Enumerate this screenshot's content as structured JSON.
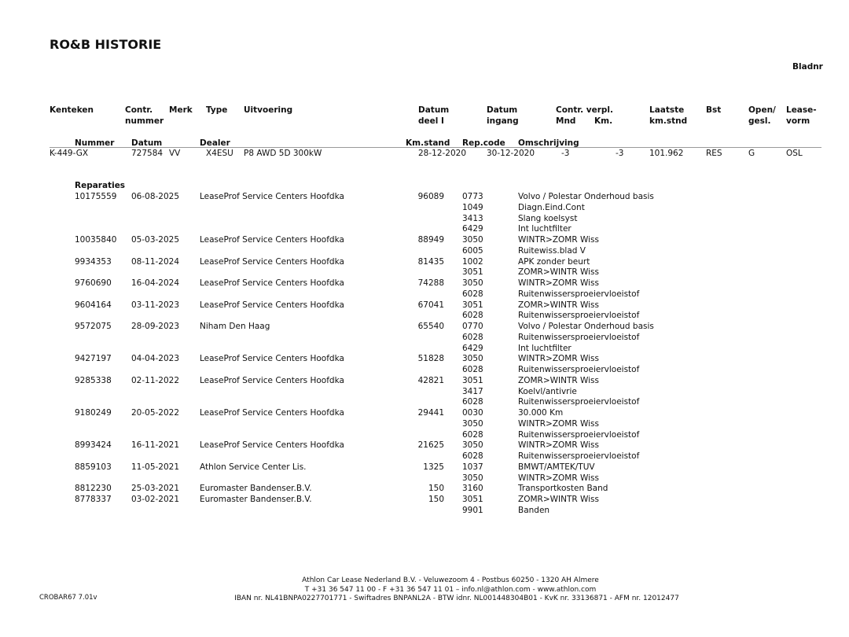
{
  "title": "RO&B HISTORIE",
  "bladnr": "Bladnr",
  "headers": {
    "kenteken": "Kenteken",
    "contr": "Contr.",
    "nummer": "nummer",
    "merk": "Merk",
    "type": "Type",
    "uitvoering": "Uitvoering",
    "datum1": "Datum",
    "deel": "deel I",
    "datum2": "Datum",
    "ingang": "ingang",
    "contrverpl": "Contr. verpl.",
    "mnd": "Mnd",
    "km": "Km.",
    "laatste": "Laatste",
    "kmstnd": "km.stnd",
    "bst": "Bst",
    "open": "Open/",
    "gesl": "gesl.",
    "lease": "Lease-",
    "vorm": "vorm"
  },
  "subheaders": {
    "nummer": "Nummer",
    "datum": "Datum",
    "dealer": "Dealer",
    "kmstand": "Km.stand",
    "repcode": "Rep.code",
    "omschrijving": "Omschrijving"
  },
  "vehicle": {
    "kenteken": "K-449-GX",
    "contractnummer": "727584",
    "merk": "VV",
    "type": "X4ESU",
    "uitvoering": "P8 AWD 5D 300kW",
    "datum_deel": "28-12-2020",
    "datum_ingang": "30-12-2020",
    "mnd": "-3",
    "km": "-3",
    "laatste_kmstnd": "101.962",
    "bst": "RES",
    "open_gesl": "G",
    "leasevorm": "OSL"
  },
  "section_label": "Reparaties",
  "repairs": [
    {
      "nummer": "10175559",
      "datum": "06-08-2025",
      "dealer": "LeaseProf Service Centers Hoofdka",
      "km": "96089",
      "items": [
        [
          "0773",
          "Volvo / Polestar Onderhoud basis"
        ],
        [
          "1049",
          "Diagn.Eind.Cont"
        ],
        [
          "3413",
          "Slang koelsyst"
        ],
        [
          "6429",
          "Int luchtfilter"
        ]
      ]
    },
    {
      "nummer": "10035840",
      "datum": "05-03-2025",
      "dealer": "LeaseProf Service Centers Hoofdka",
      "km": "88949",
      "items": [
        [
          "3050",
          "WINTR>ZOMR Wiss"
        ],
        [
          "6005",
          "Ruitewiss.blad V"
        ]
      ]
    },
    {
      "nummer": "9934353",
      "datum": "08-11-2024",
      "dealer": "LeaseProf Service Centers Hoofdka",
      "km": "81435",
      "items": [
        [
          "1002",
          "APK zonder beurt"
        ],
        [
          "3051",
          "ZOMR>WINTR Wiss"
        ]
      ]
    },
    {
      "nummer": "9760690",
      "datum": "16-04-2024",
      "dealer": "LeaseProf Service Centers Hoofdka",
      "km": "74288",
      "items": [
        [
          "3050",
          "WINTR>ZOMR Wiss"
        ],
        [
          "6028",
          "Ruitenwissersproeiervloeistof"
        ]
      ]
    },
    {
      "nummer": "9604164",
      "datum": "03-11-2023",
      "dealer": "LeaseProf Service Centers Hoofdka",
      "km": "67041",
      "items": [
        [
          "3051",
          "ZOMR>WINTR Wiss"
        ],
        [
          "6028",
          "Ruitenwissersproeiervloeistof"
        ]
      ]
    },
    {
      "nummer": "9572075",
      "datum": "28-09-2023",
      "dealer": "Niham Den Haag",
      "km": "65540",
      "items": [
        [
          "0770",
          "Volvo / Polestar Onderhoud basis"
        ],
        [
          "6028",
          "Ruitenwissersproeiervloeistof"
        ],
        [
          "6429",
          "Int luchtfilter"
        ]
      ]
    },
    {
      "nummer": "9427197",
      "datum": "04-04-2023",
      "dealer": "LeaseProf Service Centers Hoofdka",
      "km": "51828",
      "items": [
        [
          "3050",
          "WINTR>ZOMR Wiss"
        ],
        [
          "6028",
          "Ruitenwissersproeiervloeistof"
        ]
      ]
    },
    {
      "nummer": "9285338",
      "datum": "02-11-2022",
      "dealer": "LeaseProf Service Centers Hoofdka",
      "km": "42821",
      "items": [
        [
          "3051",
          "ZOMR>WINTR Wiss"
        ],
        [
          "3417",
          "Koelvl/antivrie"
        ],
        [
          "6028",
          "Ruitenwissersproeiervloeistof"
        ]
      ]
    },
    {
      "nummer": "9180249",
      "datum": "20-05-2022",
      "dealer": "LeaseProf Service Centers Hoofdka",
      "km": "29441",
      "items": [
        [
          "0030",
          "30.000 Km"
        ],
        [
          "3050",
          "WINTR>ZOMR Wiss"
        ],
        [
          "6028",
          "Ruitenwissersproeiervloeistof"
        ]
      ]
    },
    {
      "nummer": "8993424",
      "datum": "16-11-2021",
      "dealer": "LeaseProf Service Centers Hoofdka",
      "km": "21625",
      "items": [
        [
          "3050",
          "WINTR>ZOMR Wiss"
        ],
        [
          "6028",
          "Ruitenwissersproeiervloeistof"
        ]
      ]
    },
    {
      "nummer": "8859103",
      "datum": "11-05-2021",
      "dealer": "Athlon Service Center Lis.",
      "km": "1325",
      "items": [
        [
          "1037",
          "BMWT/AMTEK/TUV"
        ],
        [
          "3050",
          "WINTR>ZOMR Wiss"
        ]
      ]
    },
    {
      "nummer": "8812230",
      "datum": "25-03-2021",
      "dealer": "Euromaster Bandenser.B.V.",
      "km": "150",
      "items": [
        [
          "3160",
          "Transportkosten Band"
        ]
      ]
    },
    {
      "nummer": "8778337",
      "datum": "03-02-2021",
      "dealer": "Euromaster Bandenser.B.V.",
      "km": "150",
      "items": [
        [
          "3051",
          "ZOMR>WINTR Wiss"
        ],
        [
          "9901",
          "Banden"
        ]
      ]
    }
  ],
  "footer": {
    "version": "CROBAR67 7.01v",
    "line1": "Athlon Car Lease Nederland B.V. - Veluwezoom 4 - Postbus 60250 - 1320 AH  Almere",
    "line2": "T +31 36 547 11 00 - F +31 36 547 11 01 – info.nl@athlon.com - www.athlon.com",
    "line3": "IBAN nr. NL41BNPA0227701771 - Swiftadres BNPANL2A - BTW idnr. NL001448304B01 - KvK nr. 33136871 - AFM nr. 12012477"
  }
}
